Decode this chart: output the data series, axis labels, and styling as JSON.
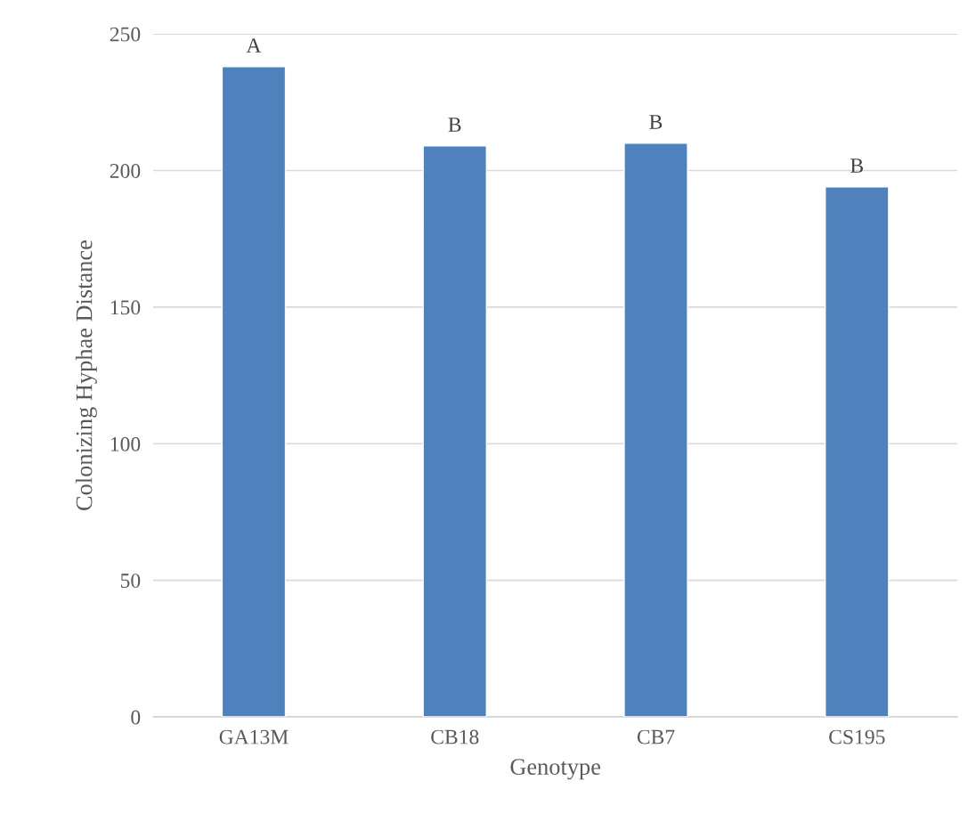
{
  "chart_data": {
    "type": "bar",
    "xlabel": "Genotype",
    "ylabel": "Colonizing Hyphae Distance",
    "categories": [
      "GA13M",
      "CB18",
      "CB7",
      "CS195"
    ],
    "values": [
      238,
      209,
      210,
      194
    ],
    "color": "#4f81bd",
    "ylim": [
      0,
      250
    ],
    "yticks": [
      0,
      50,
      100,
      150,
      200,
      250
    ],
    "grid": "y",
    "legend": false,
    "annotations": [
      {
        "text": "A",
        "x": "GA13M",
        "y": 238
      },
      {
        "text": "B",
        "x": "CB18",
        "y": 209
      },
      {
        "text": "B",
        "x": "CB7",
        "y": 210
      },
      {
        "text": "B",
        "x": "CS195",
        "y": 194
      }
    ]
  }
}
